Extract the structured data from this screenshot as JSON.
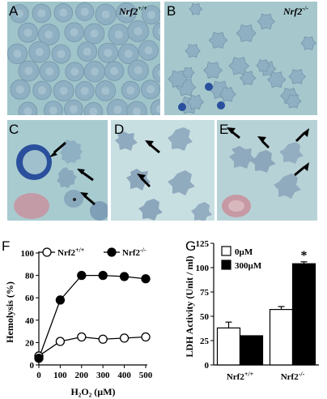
{
  "panels": {
    "A": {
      "letter": "A",
      "genotype": "Nrf2",
      "sup": "+/+"
    },
    "B": {
      "letter": "B",
      "genotype": "Nrf2",
      "sup": "-/-"
    },
    "C": {
      "letter": "C"
    },
    "D": {
      "letter": "D"
    },
    "E": {
      "letter": "E"
    },
    "F": {
      "letter": "F"
    },
    "G": {
      "letter": "G"
    }
  },
  "colors": {
    "micrograph_bg": "#9fc4c9",
    "rbc": "#8fb0c2",
    "rbc_edge": "#7b9bb0",
    "stain": "#2a4f9c"
  },
  "chart_data": [
    {
      "type": "line",
      "panel": "F",
      "ylabel": "Hemolysis (%)",
      "xlabel": "H₂O₂ (µM)",
      "x": [
        0,
        100,
        200,
        300,
        400,
        500
      ],
      "xticks": [
        "0",
        "100",
        "200",
        "300",
        "400",
        "500"
      ],
      "yticks": [
        "0",
        "20",
        "40",
        "60",
        "80",
        "100"
      ],
      "xlim": [
        0,
        500
      ],
      "ylim": [
        0,
        100
      ],
      "series": [
        {
          "name": "Nrf2",
          "sup": "+/+",
          "marker": "open-circle",
          "values": [
            8,
            21,
            25,
            23,
            24,
            25
          ]
        },
        {
          "name": "Nrf2",
          "sup": "-/-",
          "marker": "filled-circle",
          "values": [
            6,
            58,
            80,
            80,
            79,
            77
          ]
        }
      ]
    },
    {
      "type": "bar",
      "panel": "G",
      "ylabel": "LDH Activity (Unit / ml)",
      "categories": [
        {
          "name": "Nrf2",
          "sup": "+/+"
        },
        {
          "name": "Nrf2",
          "sup": "-/-"
        }
      ],
      "yticks": [
        "0",
        "25",
        "50",
        "75",
        "100",
        "125"
      ],
      "ylim": [
        0,
        125
      ],
      "annotation": "*",
      "series": [
        {
          "name": "0µM",
          "color": "#ffffff",
          "values": [
            38,
            57
          ],
          "errors": [
            6,
            3
          ]
        },
        {
          "name": "300µM",
          "color": "#000000",
          "values": [
            30,
            104
          ],
          "errors": [
            0,
            2
          ]
        }
      ]
    }
  ]
}
